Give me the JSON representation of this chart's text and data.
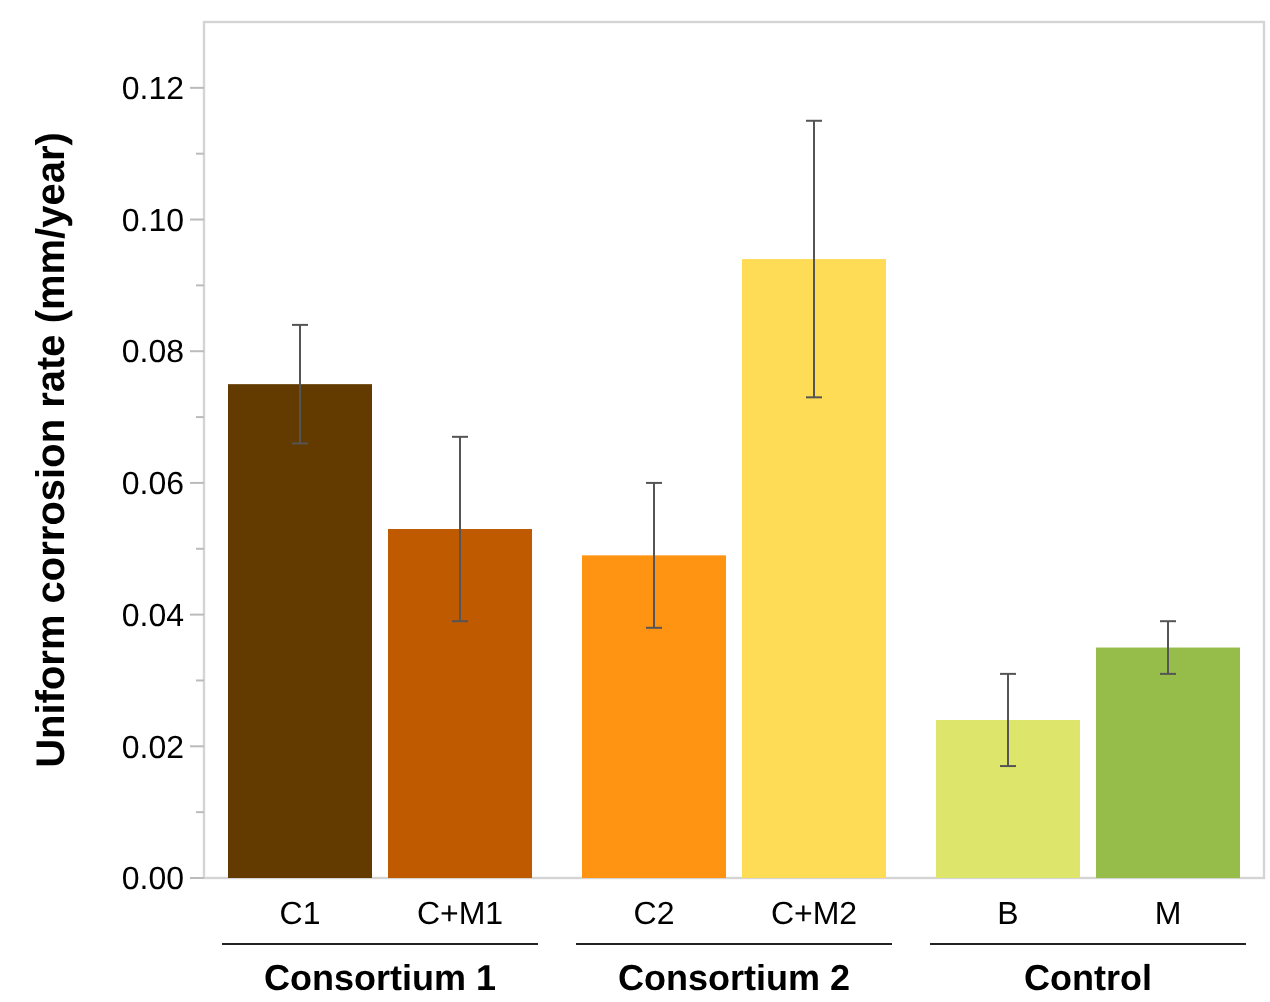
{
  "chart_data": {
    "type": "bar",
    "ylabel": "Uniform corrosion rate (mm/year)",
    "categories": [
      "C1",
      "C+M1",
      "C2",
      "C+M2",
      "B",
      "M"
    ],
    "values": [
      0.075,
      0.053,
      0.049,
      0.094,
      0.024,
      0.035
    ],
    "colors": [
      "#633a00",
      "#bf5a00",
      "#ff9412",
      "#ffdc55",
      "#dde66a",
      "#96bd4a"
    ],
    "errors": [
      [
        0.066,
        0.084
      ],
      [
        0.039,
        0.067
      ],
      [
        0.038,
        0.06
      ],
      [
        0.073,
        0.115
      ],
      [
        0.017,
        0.031
      ],
      [
        0.031,
        0.039
      ]
    ],
    "ylim": [
      0,
      0.13
    ],
    "yticks": [
      {
        "value": 0,
        "label": "0.00"
      },
      {
        "value": 0.01,
        "label": null
      },
      {
        "value": 0.02,
        "label": "0.02"
      },
      {
        "value": 0.03,
        "label": null
      },
      {
        "value": 0.04,
        "label": "0.04"
      },
      {
        "value": 0.05,
        "label": null
      },
      {
        "value": 0.06,
        "label": "0.06"
      },
      {
        "value": 0.07,
        "label": null
      },
      {
        "value": 0.08,
        "label": "0.08"
      },
      {
        "value": 0.09,
        "label": null
      },
      {
        "value": 0.1,
        "label": "0.10"
      },
      {
        "value": 0.11,
        "label": null
      },
      {
        "value": 0.12,
        "label": "0.12"
      }
    ],
    "annotations": [
      "Consortium 1",
      "Consortium 2",
      "Control"
    ],
    "grid": false
  }
}
